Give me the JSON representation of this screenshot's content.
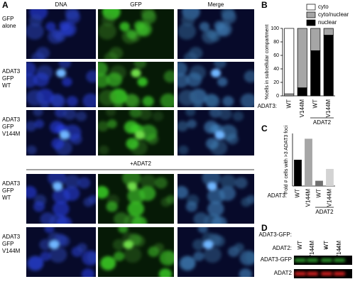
{
  "panel_a": {
    "letter": "A",
    "columns": [
      "DNA",
      "GFP",
      "Merge"
    ],
    "rows": [
      [
        "GFP",
        "alone"
      ],
      [
        "ADAT3",
        "GFP",
        "WT"
      ],
      [
        "ADAT3",
        "GFP",
        "V144M"
      ],
      [
        "ADAT3",
        "GFP",
        "WT"
      ],
      [
        "ADAT3",
        "GFP",
        "V144M"
      ]
    ],
    "treatment_label": "+ADAT2"
  },
  "chart_data": [
    {
      "type": "stacked-bar",
      "letter": "B",
      "ylabel": "%cells in subcellular compartment",
      "x_prefix_label": "ADAT3:",
      "group_label": "ADAT2",
      "categories": [
        "WT",
        "V144M",
        "WT",
        "V144M"
      ],
      "series": [
        {
          "name": "nuclear",
          "color": "#000000",
          "values": [
            0,
            12,
            67,
            90
          ]
        },
        {
          "name": "cyto/nuclear",
          "color": "#a6a6a6",
          "values": [
            3,
            88,
            33,
            10
          ]
        },
        {
          "name": "cyto",
          "color": "#ffffff",
          "values": [
            97,
            0,
            0,
            0
          ]
        }
      ],
      "ylim": [
        0,
        100
      ],
      "yticks": [
        0,
        20,
        40,
        60,
        80,
        100
      ],
      "legend": "upper right"
    },
    {
      "type": "bar",
      "letter": "C",
      "ylabel": "Fold # cells with >3 ADAT3 foci",
      "x_prefix_label": "ADAT3:",
      "group_label": "ADAT2",
      "categories": [
        "WT",
        "V144M",
        "WT",
        "V144M"
      ],
      "values": [
        1.0,
        1.8,
        0.2,
        0.65
      ],
      "colors": [
        "#000000",
        "#a6a6a6",
        "#707070",
        "#d3d3d3"
      ],
      "ylim": [
        0,
        2
      ]
    }
  ],
  "panel_d": {
    "letter": "D",
    "header_rows": [
      {
        "label": "ADAT3-GFP:",
        "cells": [
          "WT",
          "V144M",
          "WT",
          "V144M"
        ]
      },
      {
        "label": "ADAT2:",
        "cells": [
          "-",
          "-",
          "+",
          "+"
        ]
      }
    ],
    "bands": [
      "ADAT3-GFP",
      "ADAT2"
    ]
  }
}
